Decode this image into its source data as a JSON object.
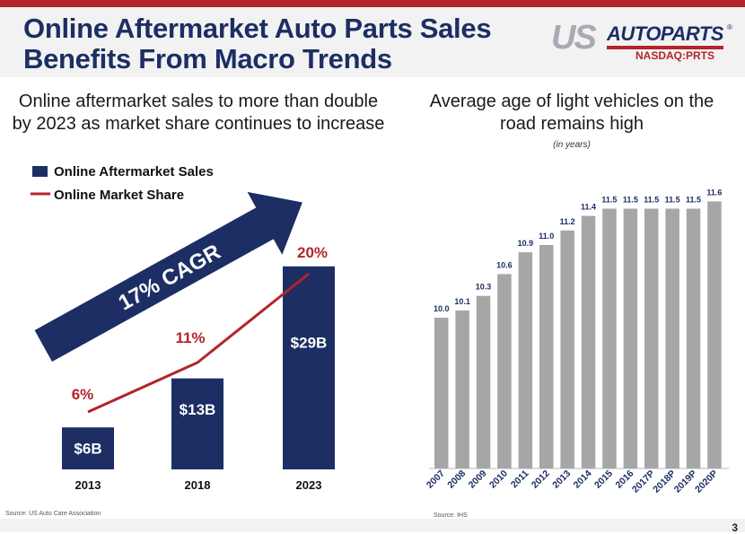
{
  "header": {
    "title_line1": "Online Aftermarket Auto Parts Sales",
    "title_line2": "Benefits From Macro Trends",
    "logo_us": "US",
    "logo_auto": "AUTOPARTS",
    "logo_reg": "®",
    "logo_ticker": "NASDAQ:PRTS"
  },
  "left_panel": {
    "subtitle_line1": "Online aftermarket sales to more than double",
    "subtitle_line2": "by 2023 as market share continues to increase",
    "source": "Source:  US Auto Care Association",
    "arrow_label": "17% CAGR"
  },
  "right_panel": {
    "subtitle_line1": "Average  age of light vehicles on the",
    "subtitle_line2": "road remains high",
    "units": "(in years)",
    "source": "Source:  IHS"
  },
  "page_number": "3",
  "colors": {
    "navy": "#1c2e63",
    "red": "#b3242b",
    "gray_bar": "#a6a6a6"
  },
  "chart_data": [
    {
      "type": "bar",
      "categories": [
        "2013",
        "2018",
        "2023"
      ],
      "series": [
        {
          "name": "Online Aftermarket Sales",
          "values": [
            6,
            13,
            29
          ],
          "data_labels": [
            "$6B",
            "$13B",
            "$29B"
          ]
        },
        {
          "name": "Online Market Share",
          "type": "line",
          "values": [
            6,
            11,
            20
          ],
          "data_labels": [
            "6%",
            "11%",
            "20%"
          ]
        }
      ],
      "legend": "top-left",
      "grid": false
    },
    {
      "type": "bar",
      "categories": [
        "2007",
        "2008",
        "2009",
        "2010",
        "2011",
        "2012",
        "2013",
        "2014",
        "2015",
        "2016",
        "2017P",
        "2018P",
        "2019P",
        "2020P"
      ],
      "values": [
        10.0,
        10.1,
        10.3,
        10.6,
        10.9,
        11.0,
        11.2,
        11.4,
        11.5,
        11.5,
        11.5,
        11.5,
        11.5,
        11.6
      ],
      "data_labels": [
        "10.0",
        "10.1",
        "10.3",
        "10.6",
        "10.9",
        "11.0",
        "11.2",
        "11.4",
        "11.5",
        "11.5",
        "11.5",
        "11.5",
        "11.5",
        "11.6"
      ],
      "grid": false
    }
  ]
}
